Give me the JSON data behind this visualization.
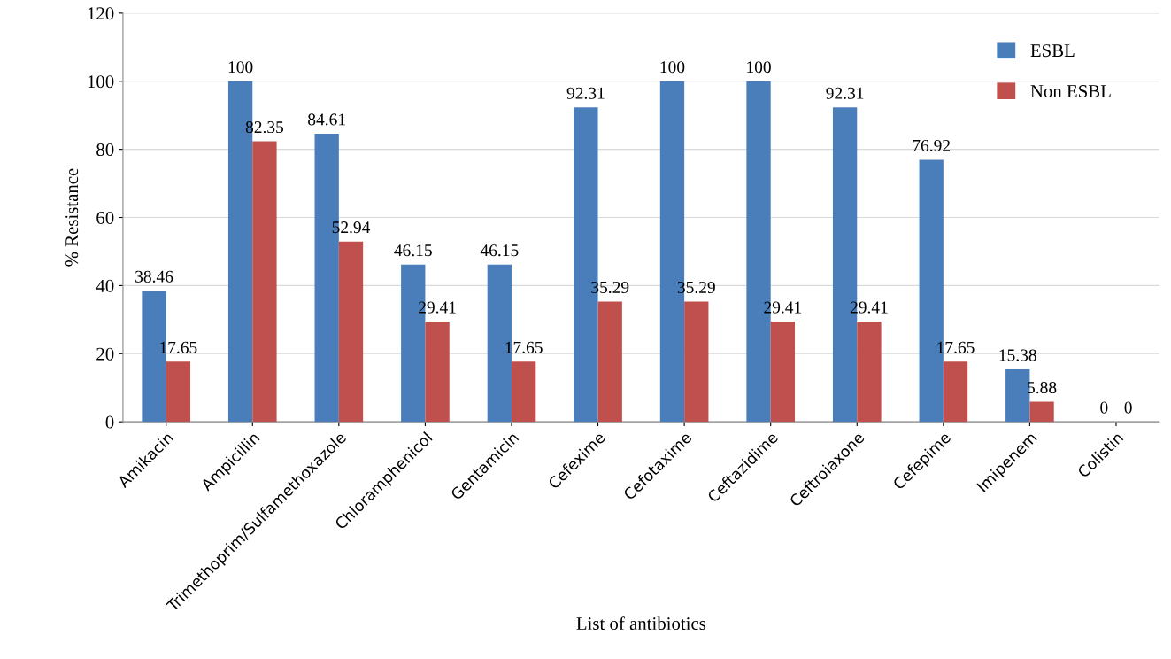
{
  "chart_data": {
    "type": "bar",
    "xlabel": "List of antibiotics",
    "ylabel": "% Resistance",
    "categories": [
      "Amikacin",
      "Ampicillin",
      "Trimethoprim/Sulfamethoxazole",
      "Chloramphenicol",
      "Gentamicin",
      "Cefexime",
      "Cefotaxime",
      "Ceftazidime",
      "Ceftroiaxone",
      "Cefepime",
      "Imipenem",
      "Colistin"
    ],
    "series": [
      {
        "name": "ESBL",
        "color": "#4a7ebb",
        "values": [
          38.46,
          100,
          84.61,
          46.15,
          46.15,
          92.31,
          100,
          100,
          92.31,
          76.92,
          15.38,
          0
        ]
      },
      {
        "name": "Non ESBL",
        "color": "#c0504d",
        "values": [
          17.65,
          82.35,
          52.94,
          29.41,
          17.65,
          35.29,
          35.29,
          29.41,
          29.41,
          17.65,
          5.88,
          0
        ]
      }
    ],
    "ylim": [
      0,
      120
    ],
    "yticks": [
      0,
      20,
      40,
      60,
      80,
      100,
      120
    ],
    "grid": "y",
    "legend": "top right",
    "data_labels": true
  }
}
